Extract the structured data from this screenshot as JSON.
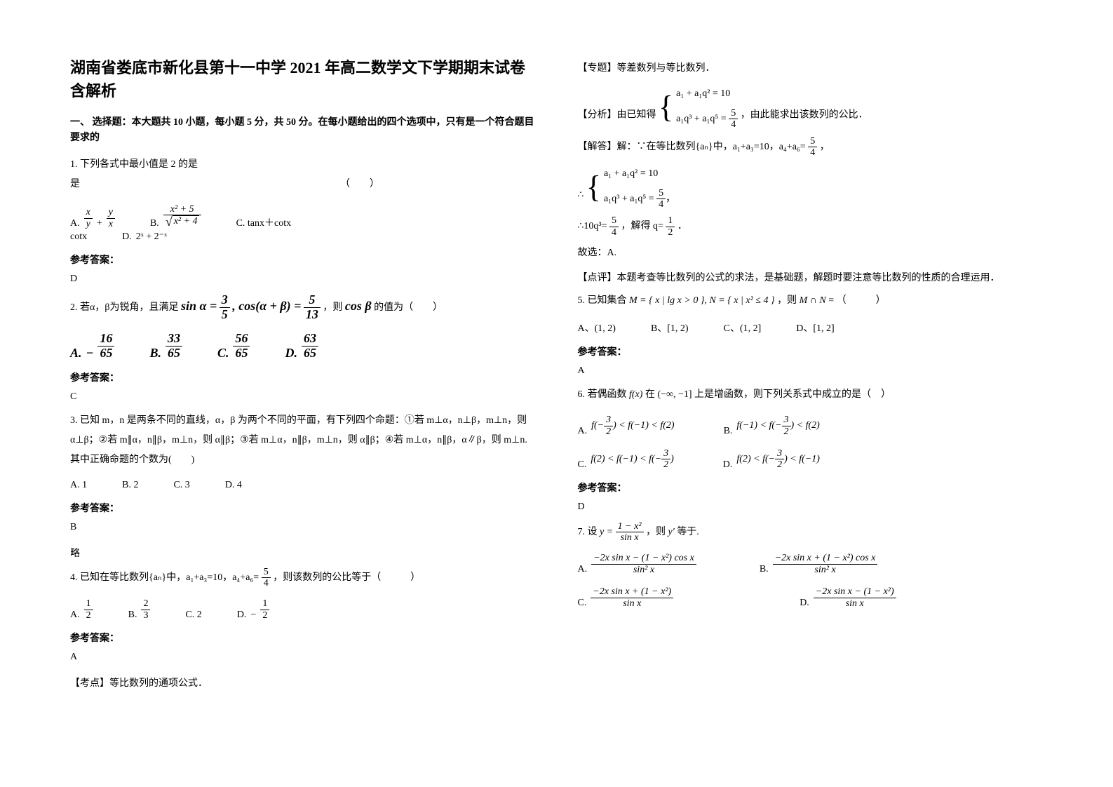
{
  "title": "湖南省娄底市新化县第十一中学 2021 年高二数学文下学期期末试卷含解析",
  "section1": "一、 选择题：本大题共 10 小题，每小题 5 分，共 50 分。在每小题给出的四个选项中，只有是一个符合题目要求的",
  "q1": {
    "text": "1. 下列各式中最小值是 2 的是",
    "paren": "（　　）",
    "optA_label": "A.",
    "optB_label": "B.",
    "optC_label": "C.  tanx＋cotx",
    "optD_label": "D.",
    "x": "x",
    "y": "y",
    "x2p5": "x² + 5",
    "x2p4": "x² + 4",
    "expD": "2ˣ + 2⁻ˣ"
  },
  "answer_label": "参考答案：",
  "q1_answer": "D",
  "q2": {
    "text_prefix": "2. 若α，β为锐角，且满足 ",
    "sin_label": "sin α =",
    "sin_num": "3",
    "sin_den": "5",
    "cos_label": ", cos(α + β) =",
    "cos_num": "5",
    "cos_den": "13",
    "text_suffix": "，则",
    "cosb": "cos β",
    "text_end": "的值为（　　）",
    "A_label": "A.",
    "A_num": "16",
    "A_den": "65",
    "A_sign": "−",
    "B_label": "B.",
    "B_num": "33",
    "B_den": "65",
    "C_label": "C.",
    "C_num": "56",
    "C_den": "65",
    "D_label": "D.",
    "D_num": "63",
    "D_den": "65"
  },
  "q2_answer": "C",
  "q3": {
    "text": "3. 已知 m，n 是两条不同的直线，α，β 为两个不同的平面，有下列四个命题：①若 m⊥α，n⊥β，m⊥n，则 α⊥β；②若 m∥α，n∥β，m⊥n，则 α∥β；③若 m⊥α，n∥β，m⊥n，则 α∥β；④若 m⊥α，n∥β，α∥β，则 m⊥n. 其中正确命题的个数为(　　)",
    "A": "A.  1",
    "B": "B.  2",
    "C": "C.  3",
    "D": "D.  4"
  },
  "q3_answer": "B",
  "q3_extra": "略",
  "q4": {
    "text_prefix": "4. 已知在等比数列{aₙ}中，a₁+a₃=10，a₄+a₆=",
    "frac_num": "5",
    "frac_den": "4",
    "text_suffix": "，则该数列的公比等于（　　　）",
    "A_label": "A.",
    "A_num": "1",
    "A_den": "2",
    "B_label": "B.",
    "B_num": "2",
    "B_den": "3",
    "C_label": "C.  2",
    "D_label": "D.",
    "D_sign": "−",
    "D_num": "1",
    "D_den": "2"
  },
  "q4_answer": "A",
  "q4_kaodian": "【考点】等比数列的通项公式．",
  "right": {
    "zhuanti": "【专题】等差数列与等比数列．",
    "fenxi_prefix": "【分析】由已知得",
    "eq1": "a₁ + a₁q² = 10",
    "eq2_lhs": "a₁q³ + a₁q⁵ =",
    "eq2_num": "5",
    "eq2_den": "4",
    "fenxi_suffix": "，由此能求出该数列的公比．",
    "jieda_prefix": "【解答】解：∵在等比数列{aₙ}中，a₁+a₃=10，a₄+a₆=",
    "jieda_num": "5",
    "jieda_den": "4",
    "jieda_suffix": "，",
    "therefore": "∴",
    "conc1_prefix": "∴10q³=",
    "conc1_num": "5",
    "conc1_den": "4",
    "conc1_mid": "，解得 q=",
    "conc1_num2": "1",
    "conc1_den2": "2",
    "conc1_suffix": "．",
    "guxuan": "故选：A.",
    "dianping": "【点评】本题考查等比数列的公式的求法，是基础题，解题时要注意等比数列的性质的合理运用．"
  },
  "q5": {
    "prefix": "5. 已知集合 ",
    "M": "M = { x | lg x > 0 }, N = { x | x² ≤ 4 }",
    "mid": "，则",
    "MN": "M ∩ N",
    "eq": " = （　　　）",
    "A": "A、(1, 2)",
    "B": "B、[1, 2)",
    "C": "C、(1, 2]",
    "D": "D、[1, 2]"
  },
  "q5_answer": "A",
  "q6": {
    "prefix": "6. 若偶函数",
    "fx": "f(x)",
    "mid1": "在",
    "interval": "(−∞, −1]",
    "mid2": "上是增函数，则下列关系式中成立的是（　）",
    "A_label": "A.",
    "A_expr_p1": "f(−",
    "A_num": "3",
    "A_den": "2",
    "A_expr_p2": ") < f(−1) < f(2)",
    "B_label": "B.",
    "B_expr_p1": "f(−1) < f(−",
    "B_num": "3",
    "B_den": "2",
    "B_expr_p2": ") < f(2)",
    "C_label": "C.",
    "C_expr_p1": "f(2) < f(−1) < f(−",
    "C_num": "3",
    "C_den": "2",
    "C_expr_p2": ")",
    "D_label": "D.",
    "D_expr_p1": "f(2) < f(−",
    "D_num": "3",
    "D_den": "2",
    "D_expr_p2": ") < f(−1)"
  },
  "q6_answer": " D",
  "q7": {
    "prefix": "7. 设",
    "y_eq": "y =",
    "num": "1 − x²",
    "den": "sin x",
    "mid": " ，则",
    "yprime": "y′",
    "suffix": " 等于.",
    "A_label": "A.",
    "A_num": "−2x sin x − (1 − x²) cos x",
    "A_den": "sin² x",
    "B_label": "B.",
    "B_num": "−2x sin x + (1 − x²) cos x",
    "B_den": "sin² x",
    "C_label": "C.",
    "C_num": "−2x sin x + (1 − x²)",
    "C_den": "sin x",
    "D_label": "D.",
    "D_num": "−2x sin x − (1 − x²)",
    "D_den": "sin x"
  }
}
